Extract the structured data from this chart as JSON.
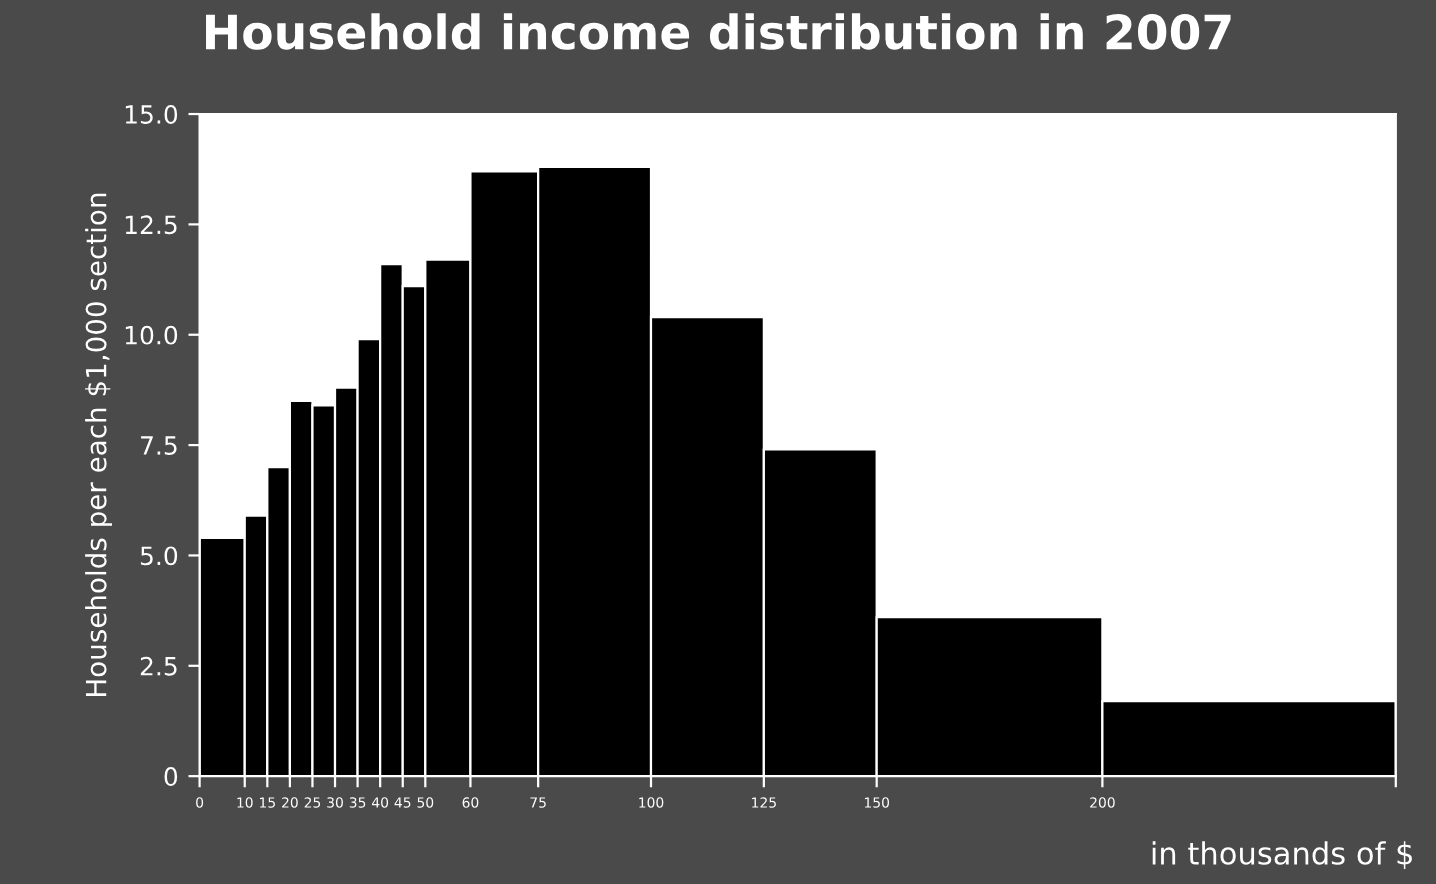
{
  "chart_data": {
    "type": "histogram",
    "title": "Household income distribution in 2007",
    "ylabel": "Households per each $1,000 section",
    "xlabel": "in thousands of $",
    "bins": [
      0,
      10,
      15,
      20,
      25,
      30,
      35,
      40,
      45,
      50,
      60,
      75,
      100,
      125,
      150,
      200,
      265
    ],
    "values": [
      5.4,
      5.9,
      7.0,
      8.5,
      8.4,
      8.8,
      9.9,
      11.6,
      11.1,
      11.7,
      13.7,
      13.8,
      10.4,
      7.4,
      3.6,
      1.7
    ],
    "color": "#000000",
    "xlim": [
      0,
      265
    ],
    "xticks": [
      0,
      10,
      15,
      20,
      25,
      30,
      35,
      40,
      45,
      50,
      60,
      75,
      100,
      125,
      150,
      200,
      {
        "value": 265,
        "label": null
      }
    ],
    "ylim": [
      0,
      15
    ],
    "yticks": [
      0,
      2.5,
      {
        "value": 5,
        "label": "5.0"
      },
      7.5,
      {
        "value": 10,
        "label": "10.0"
      },
      12.5,
      {
        "value": 15,
        "label": "15.0"
      }
    ],
    "grid": false,
    "legend": false
  }
}
